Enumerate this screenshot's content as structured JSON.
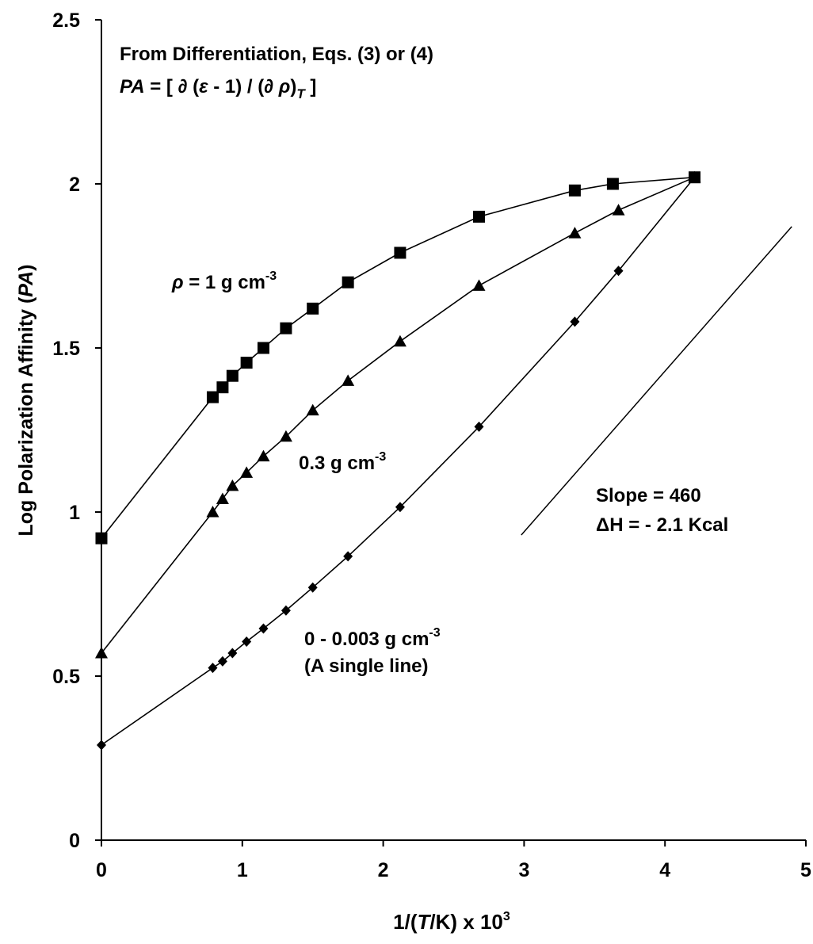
{
  "chart_data": {
    "type": "line",
    "xlabel": {
      "pre": "1/(",
      "italic": "T",
      "post": "/K) x 10",
      "sup": "3"
    },
    "ylabel": {
      "pre": "Log Polarization Affinity (",
      "italic": "PA",
      "post": ")"
    },
    "xlim": [
      0,
      5
    ],
    "ylim": [
      0,
      2.5
    ],
    "xticks": [
      "0",
      "1",
      "2",
      "3",
      "4",
      "5"
    ],
    "yticks": [
      "0",
      "0.5",
      "1",
      "1.5",
      "2",
      "2.5"
    ],
    "grid": false,
    "series": [
      {
        "marker": "square",
        "points": [
          [
            0,
            0.92
          ],
          [
            0.79,
            1.35
          ],
          [
            0.86,
            1.38
          ],
          [
            0.93,
            1.415
          ],
          [
            1.03,
            1.455
          ],
          [
            1.15,
            1.5
          ],
          [
            1.31,
            1.56
          ],
          [
            1.5,
            1.62
          ],
          [
            1.75,
            1.7
          ],
          [
            2.12,
            1.79
          ],
          [
            2.68,
            1.9
          ],
          [
            3.36,
            1.98
          ],
          [
            3.63,
            2.0
          ],
          [
            4.21,
            2.02
          ]
        ]
      },
      {
        "marker": "triangle",
        "points": [
          [
            0,
            0.57
          ],
          [
            0.79,
            1.0
          ],
          [
            0.86,
            1.04
          ],
          [
            0.93,
            1.08
          ],
          [
            1.03,
            1.12
          ],
          [
            1.15,
            1.17
          ],
          [
            1.31,
            1.23
          ],
          [
            1.5,
            1.31
          ],
          [
            1.75,
            1.4
          ],
          [
            2.12,
            1.52
          ],
          [
            2.68,
            1.69
          ],
          [
            3.36,
            1.85
          ],
          [
            3.67,
            1.92
          ],
          [
            4.21,
            2.02
          ]
        ]
      },
      {
        "marker": "diamond",
        "points": [
          [
            0,
            0.29
          ],
          [
            0.79,
            0.525
          ],
          [
            0.86,
            0.545
          ],
          [
            0.93,
            0.57
          ],
          [
            1.03,
            0.605
          ],
          [
            1.15,
            0.645
          ],
          [
            1.31,
            0.7
          ],
          [
            1.5,
            0.77
          ],
          [
            1.75,
            0.865
          ],
          [
            2.12,
            1.015
          ],
          [
            2.68,
            1.26
          ],
          [
            3.36,
            1.58
          ],
          [
            3.67,
            1.735
          ],
          [
            4.21,
            2.02
          ]
        ]
      }
    ],
    "reference_line": {
      "points": [
        [
          2.98,
          0.93
        ],
        [
          4.9,
          1.87
        ]
      ]
    },
    "annotations": {
      "title_line1": "From Differentiation, Eqs. (3) or (4)",
      "title_line2": {
        "pa": "PA",
        "eq": " = [ ∂ (",
        "eps": "ε",
        "minus": " - 1) / (∂ ",
        "rho": "ρ",
        "close": ")",
        "sub": "T",
        "end": " ]"
      },
      "rho1": {
        "rho": "ρ",
        "text": " = 1 g cm",
        "sup": "-3"
      },
      "rho03": {
        "text": "0.3 g cm",
        "sup": "-3"
      },
      "rho0": {
        "text": "0 - 0.003 g cm",
        "sup": "-3"
      },
      "single_line": "(A single line)",
      "slope": "Slope = 460",
      "dh": "ΔH = - 2.1 Kcal"
    }
  }
}
